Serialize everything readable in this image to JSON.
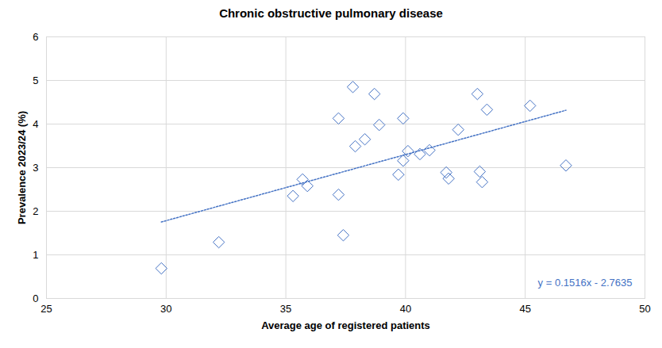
{
  "chart_data": {
    "type": "scatter",
    "title": "Chronic obstructive pulmonary disease",
    "x_label": "Average age of registered patients",
    "y_label": "Prevalence 2023/24 (%)",
    "x": [
      29.8,
      32.2,
      35.3,
      35.7,
      35.9,
      37.2,
      37.2,
      37.4,
      37.8,
      37.9,
      38.3,
      38.7,
      38.9,
      39.7,
      39.9,
      39.9,
      40.1,
      40.6,
      41.0,
      41.7,
      41.8,
      42.2,
      43.0,
      43.1,
      43.2,
      43.4,
      45.2,
      46.7
    ],
    "values": [
      0.69,
      1.29,
      2.35,
      2.73,
      2.58,
      2.38,
      4.13,
      1.45,
      4.85,
      3.49,
      3.65,
      4.69,
      3.98,
      2.84,
      4.13,
      3.16,
      3.38,
      3.31,
      3.4,
      2.89,
      2.75,
      3.87,
      4.69,
      2.91,
      2.67,
      4.33,
      4.42,
      3.05
    ],
    "color": "#4472c4",
    "marker": "diamond",
    "xlim": [
      25,
      50
    ],
    "xticks": [
      25,
      30,
      35,
      40,
      45,
      50
    ],
    "ylim": [
      0,
      6
    ],
    "yticks": [
      0,
      1,
      2,
      3,
      4,
      5,
      6
    ],
    "grid": true,
    "trendline": {
      "slope": 0.1516,
      "intercept": -2.7635,
      "label": "y = 0.1516x - 2.7635",
      "line_style": "dotted"
    }
  }
}
